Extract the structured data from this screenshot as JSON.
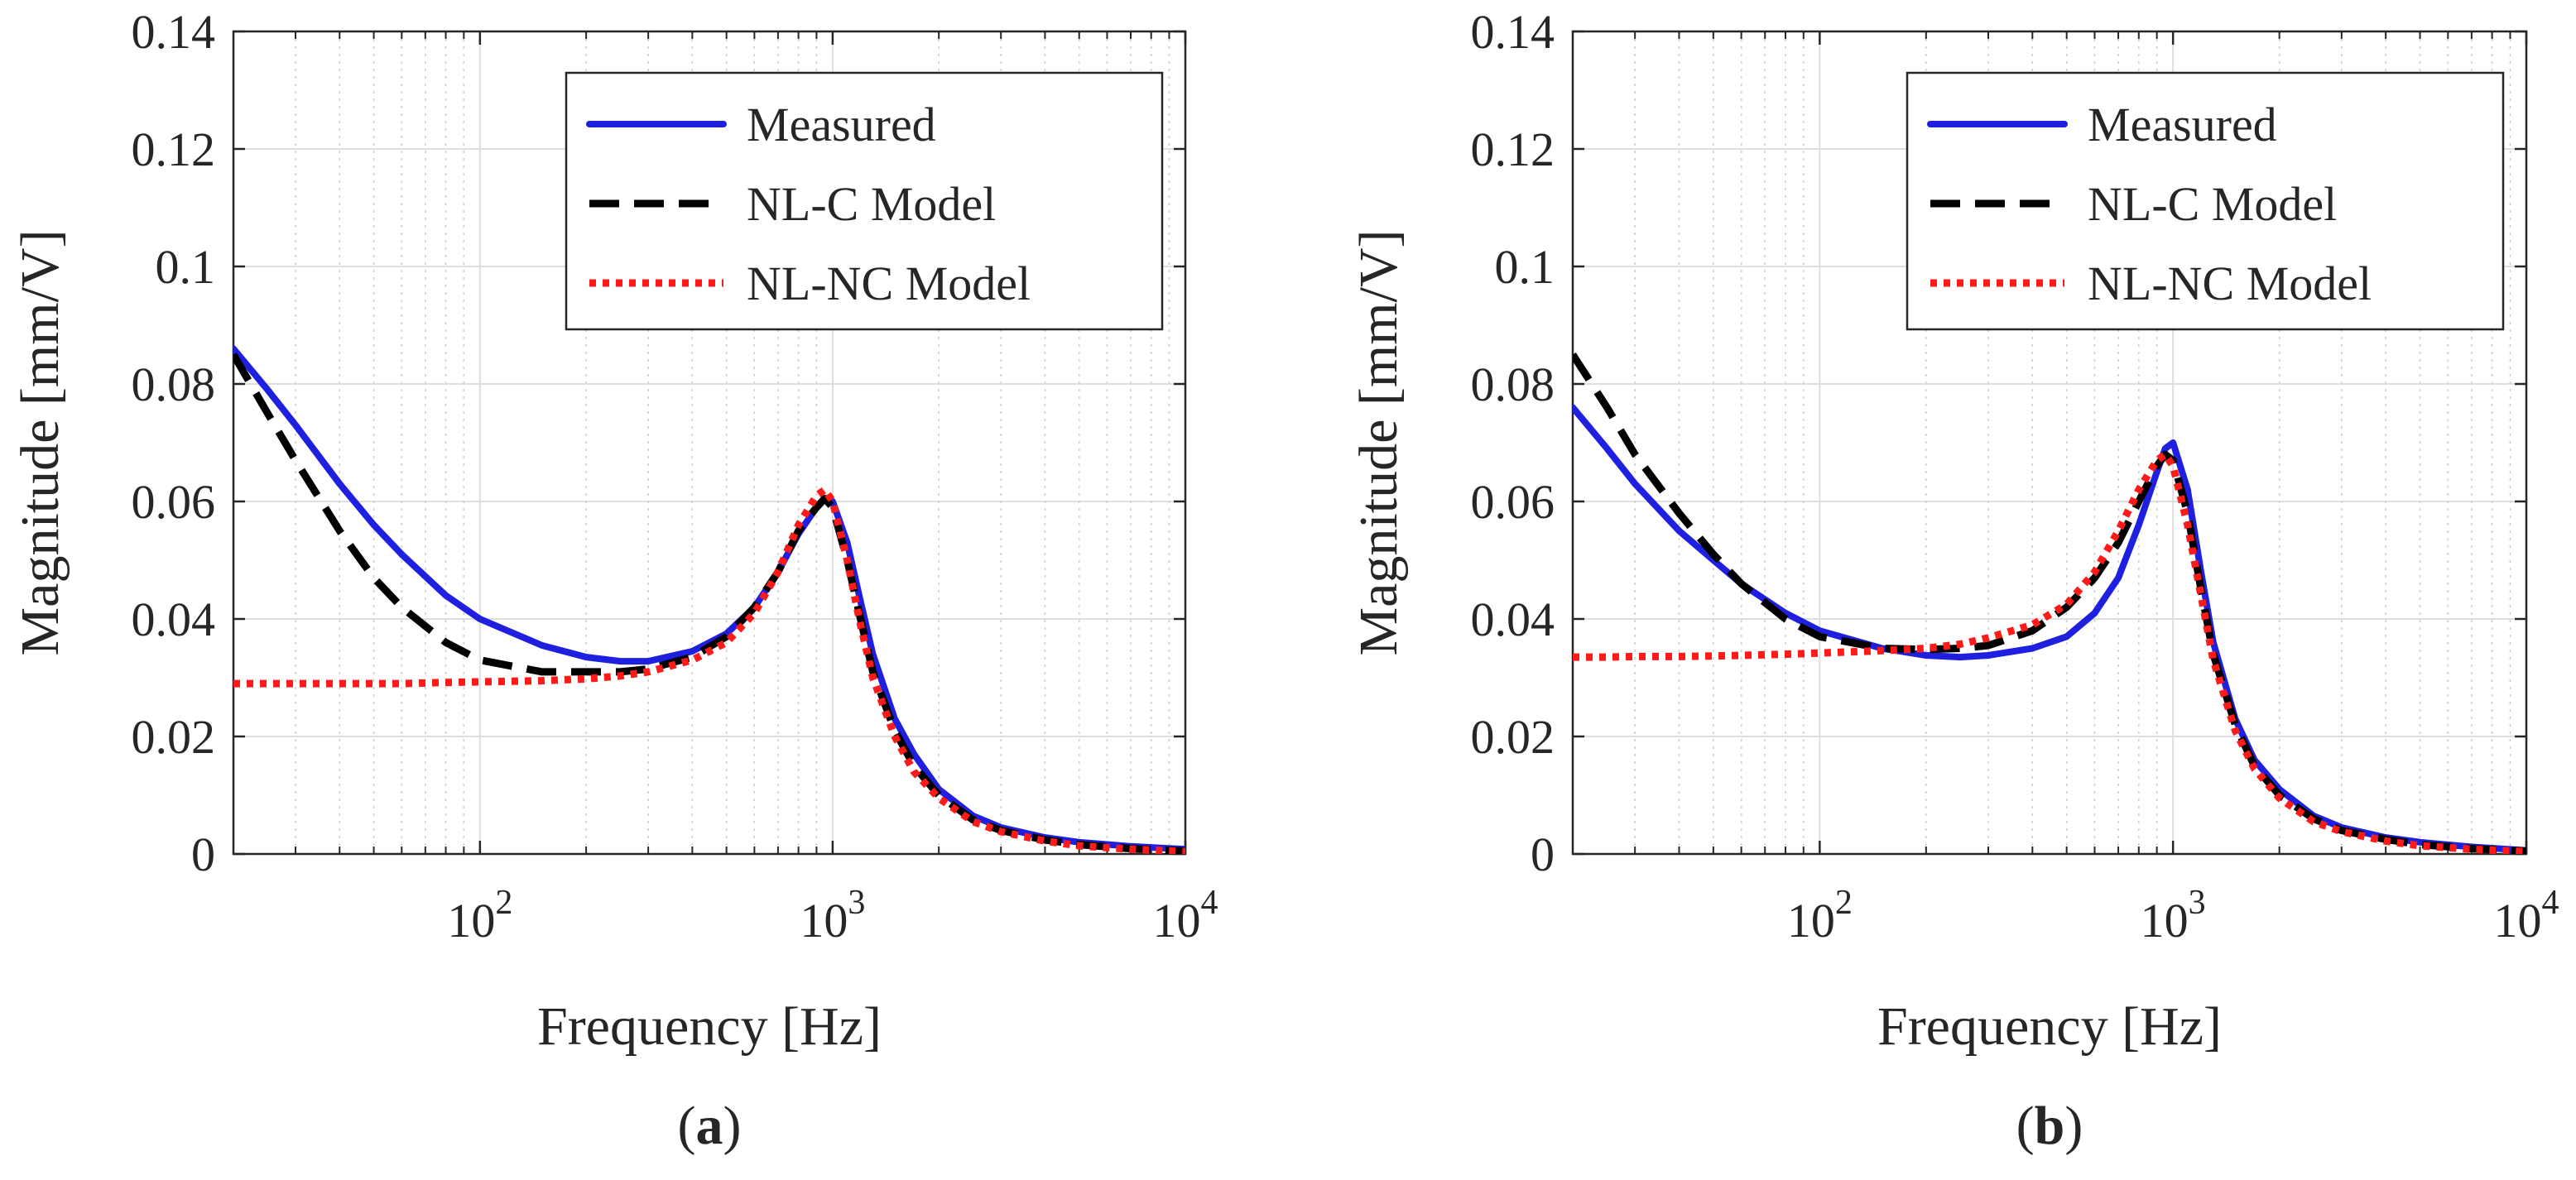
{
  "chart_data": [
    {
      "type": "line",
      "panel_label": "a",
      "xlabel": "Frequency [Hz]",
      "ylabel": "Magnitude [mm/V]",
      "xscale": "log",
      "xlim": [
        20,
        10000
      ],
      "ylim": [
        0,
        0.14
      ],
      "grid": true,
      "legend_position": "top-right",
      "yticks": [
        "0",
        "0.02",
        "0.04",
        "0.06",
        "0.08",
        "0.1",
        "0.12",
        "0.14"
      ],
      "xticks": [
        {
          "base": "10",
          "exp": "2",
          "value": 100
        },
        {
          "base": "10",
          "exp": "3",
          "value": 1000
        },
        {
          "base": "10",
          "exp": "4",
          "value": 10000
        }
      ],
      "series": [
        {
          "name": "Measured",
          "color": "#1f1fe0",
          "style": "solid",
          "x": [
            20,
            25,
            30,
            40,
            50,
            60,
            80,
            100,
            150,
            200,
            250,
            300,
            400,
            500,
            600,
            700,
            800,
            900,
            950,
            1000,
            1100,
            1200,
            1300,
            1500,
            1700,
            2000,
            2500,
            3000,
            4000,
            5000,
            7000,
            10000
          ],
          "y": [
            0.086,
            0.079,
            0.073,
            0.063,
            0.056,
            0.051,
            0.044,
            0.04,
            0.0355,
            0.0335,
            0.0328,
            0.0328,
            0.0345,
            0.0375,
            0.042,
            0.048,
            0.0545,
            0.059,
            0.0605,
            0.06,
            0.053,
            0.043,
            0.034,
            0.023,
            0.017,
            0.011,
            0.0065,
            0.0045,
            0.0028,
            0.002,
            0.0013,
            0.0008
          ]
        },
        {
          "name": "NL-C Model",
          "color": "#000000",
          "style": "dashed",
          "x": [
            20,
            25,
            30,
            40,
            50,
            60,
            80,
            100,
            150,
            200,
            250,
            300,
            400,
            500,
            600,
            700,
            800,
            900,
            950,
            1000,
            1100,
            1200,
            1300,
            1500,
            1700,
            2000,
            2500,
            3000,
            4000,
            5000,
            7000,
            10000
          ],
          "y": [
            0.085,
            0.075,
            0.067,
            0.055,
            0.047,
            0.042,
            0.036,
            0.033,
            0.031,
            0.031,
            0.031,
            0.0315,
            0.0335,
            0.037,
            0.042,
            0.048,
            0.055,
            0.059,
            0.0605,
            0.059,
            0.05,
            0.04,
            0.031,
            0.021,
            0.015,
            0.01,
            0.0058,
            0.004,
            0.0024,
            0.0016,
            0.0009,
            0.0005
          ]
        },
        {
          "name": "NL-NC Model",
          "color": "#ff1a1a",
          "style": "dotted",
          "x": [
            20,
            25,
            30,
            40,
            50,
            60,
            80,
            100,
            150,
            200,
            250,
            300,
            400,
            500,
            600,
            700,
            800,
            900,
            950,
            1000,
            1100,
            1200,
            1300,
            1500,
            1700,
            2000,
            2500,
            3000,
            4000,
            5000,
            7000,
            10000
          ],
          "y": [
            0.029,
            0.029,
            0.029,
            0.029,
            0.029,
            0.029,
            0.0292,
            0.0293,
            0.0295,
            0.0298,
            0.0303,
            0.031,
            0.033,
            0.036,
            0.041,
            0.048,
            0.056,
            0.061,
            0.062,
            0.06,
            0.05,
            0.039,
            0.03,
            0.02,
            0.014,
            0.0095,
            0.0055,
            0.0038,
            0.0022,
            0.0014,
            0.0008,
            0.0004
          ]
        }
      ]
    },
    {
      "type": "line",
      "panel_label": "b",
      "xlabel": "Frequency [Hz]",
      "ylabel": "Magnitude [mm/V]",
      "xscale": "log",
      "xlim": [
        20,
        10000
      ],
      "ylim": [
        0,
        0.14
      ],
      "grid": true,
      "legend_position": "top-right",
      "yticks": [
        "0",
        "0.02",
        "0.04",
        "0.06",
        "0.08",
        "0.1",
        "0.12",
        "0.14"
      ],
      "xticks": [
        {
          "base": "10",
          "exp": "2",
          "value": 100
        },
        {
          "base": "10",
          "exp": "3",
          "value": 1000
        },
        {
          "base": "10",
          "exp": "4",
          "value": 10000
        }
      ],
      "series": [
        {
          "name": "Measured",
          "color": "#1f1fe0",
          "style": "solid",
          "x": [
            20,
            25,
            30,
            40,
            50,
            60,
            80,
            100,
            150,
            200,
            250,
            300,
            400,
            500,
            600,
            700,
            800,
            900,
            950,
            1000,
            1100,
            1200,
            1300,
            1500,
            1700,
            2000,
            2500,
            3000,
            4000,
            5000,
            7000,
            10000
          ],
          "y": [
            0.076,
            0.069,
            0.063,
            0.055,
            0.05,
            0.046,
            0.041,
            0.038,
            0.035,
            0.0338,
            0.0335,
            0.0338,
            0.035,
            0.037,
            0.041,
            0.047,
            0.056,
            0.065,
            0.069,
            0.07,
            0.062,
            0.048,
            0.036,
            0.023,
            0.016,
            0.011,
            0.0065,
            0.0045,
            0.0028,
            0.002,
            0.0012,
            0.0006
          ]
        },
        {
          "name": "NL-C Model",
          "color": "#000000",
          "style": "dashed",
          "x": [
            20,
            25,
            30,
            40,
            50,
            60,
            80,
            100,
            150,
            200,
            250,
            300,
            400,
            500,
            600,
            700,
            800,
            900,
            950,
            1000,
            1100,
            1200,
            1300,
            1500,
            1700,
            2000,
            2500,
            3000,
            4000,
            5000,
            7000,
            10000
          ],
          "y": [
            0.085,
            0.076,
            0.068,
            0.058,
            0.051,
            0.046,
            0.04,
            0.037,
            0.035,
            0.0348,
            0.035,
            0.0355,
            0.038,
            0.042,
            0.047,
            0.053,
            0.06,
            0.066,
            0.068,
            0.067,
            0.058,
            0.045,
            0.034,
            0.022,
            0.015,
            0.01,
            0.006,
            0.004,
            0.0025,
            0.0016,
            0.0009,
            0.0005
          ]
        },
        {
          "name": "NL-NC Model",
          "color": "#ff1a1a",
          "style": "dotted",
          "x": [
            20,
            25,
            30,
            40,
            50,
            60,
            80,
            100,
            150,
            200,
            250,
            300,
            400,
            500,
            600,
            700,
            800,
            900,
            950,
            1000,
            1100,
            1200,
            1300,
            1500,
            1700,
            2000,
            2500,
            3000,
            4000,
            5000,
            7000,
            10000
          ],
          "y": [
            0.0335,
            0.0335,
            0.0336,
            0.0336,
            0.0337,
            0.0338,
            0.034,
            0.0342,
            0.0346,
            0.035,
            0.0357,
            0.0368,
            0.039,
            0.0425,
            0.048,
            0.055,
            0.062,
            0.067,
            0.068,
            0.066,
            0.056,
            0.044,
            0.033,
            0.021,
            0.0145,
            0.0095,
            0.0055,
            0.0038,
            0.0022,
            0.0014,
            0.0008,
            0.0004
          ]
        }
      ]
    }
  ]
}
